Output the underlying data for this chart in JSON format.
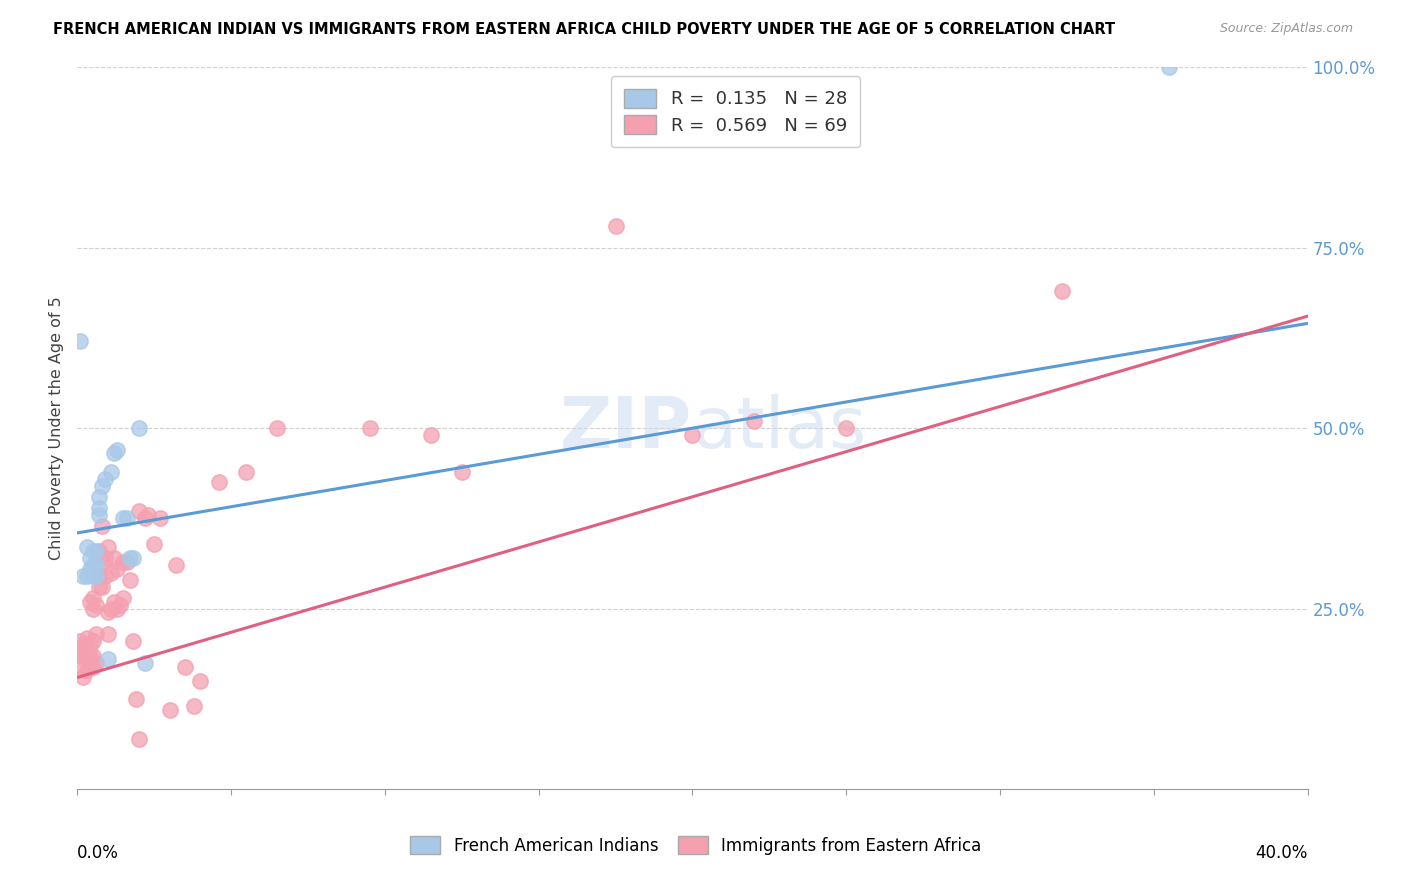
{
  "title": "FRENCH AMERICAN INDIAN VS IMMIGRANTS FROM EASTERN AFRICA CHILD POVERTY UNDER THE AGE OF 5 CORRELATION CHART",
  "source": "Source: ZipAtlas.com",
  "ylabel": "Child Poverty Under the Age of 5",
  "blue_R": 0.135,
  "blue_N": 28,
  "pink_R": 0.569,
  "pink_N": 69,
  "blue_color": "#a8c8e8",
  "pink_color": "#f4a0b0",
  "blue_line_color": "#5b9bd5",
  "pink_line_color": "#e06080",
  "watermark": "ZIPatlas",
  "blue_line_x0": 0.0,
  "blue_line_y0": 0.355,
  "blue_line_x1": 0.4,
  "blue_line_y1": 0.645,
  "pink_line_x0": 0.0,
  "pink_line_y0": 0.155,
  "pink_line_x1": 0.4,
  "pink_line_y1": 0.655,
  "blue_points_x": [
    0.001,
    0.002,
    0.003,
    0.003,
    0.004,
    0.004,
    0.005,
    0.005,
    0.005,
    0.006,
    0.006,
    0.006,
    0.007,
    0.007,
    0.007,
    0.008,
    0.009,
    0.01,
    0.011,
    0.012,
    0.013,
    0.015,
    0.016,
    0.017,
    0.018,
    0.02,
    0.022,
    0.355
  ],
  "blue_points_y": [
    0.62,
    0.295,
    0.295,
    0.335,
    0.305,
    0.32,
    0.295,
    0.31,
    0.33,
    0.295,
    0.31,
    0.33,
    0.38,
    0.39,
    0.405,
    0.42,
    0.43,
    0.18,
    0.44,
    0.465,
    0.47,
    0.375,
    0.375,
    0.32,
    0.32,
    0.5,
    0.175,
    1.0
  ],
  "pink_points_x": [
    0.001,
    0.001,
    0.001,
    0.002,
    0.002,
    0.002,
    0.002,
    0.003,
    0.003,
    0.003,
    0.003,
    0.004,
    0.004,
    0.004,
    0.004,
    0.005,
    0.005,
    0.005,
    0.005,
    0.005,
    0.006,
    0.006,
    0.006,
    0.007,
    0.007,
    0.007,
    0.008,
    0.008,
    0.008,
    0.009,
    0.009,
    0.01,
    0.01,
    0.01,
    0.011,
    0.011,
    0.012,
    0.012,
    0.013,
    0.013,
    0.014,
    0.015,
    0.015,
    0.016,
    0.017,
    0.018,
    0.019,
    0.02,
    0.02,
    0.022,
    0.023,
    0.025,
    0.027,
    0.03,
    0.032,
    0.035,
    0.038,
    0.04,
    0.046,
    0.055,
    0.065,
    0.095,
    0.115,
    0.125,
    0.175,
    0.2,
    0.22,
    0.25,
    0.32
  ],
  "pink_points_y": [
    0.185,
    0.195,
    0.205,
    0.155,
    0.165,
    0.185,
    0.2,
    0.165,
    0.18,
    0.195,
    0.21,
    0.175,
    0.185,
    0.2,
    0.26,
    0.17,
    0.185,
    0.205,
    0.25,
    0.265,
    0.175,
    0.215,
    0.255,
    0.28,
    0.295,
    0.33,
    0.28,
    0.315,
    0.365,
    0.295,
    0.32,
    0.215,
    0.245,
    0.335,
    0.25,
    0.3,
    0.26,
    0.32,
    0.25,
    0.305,
    0.255,
    0.265,
    0.315,
    0.315,
    0.29,
    0.205,
    0.125,
    0.07,
    0.385,
    0.375,
    0.38,
    0.34,
    0.375,
    0.11,
    0.31,
    0.17,
    0.115,
    0.15,
    0.425,
    0.44,
    0.5,
    0.5,
    0.49,
    0.44,
    0.78,
    0.49,
    0.51,
    0.5,
    0.69
  ],
  "xlim": [
    0.0,
    0.4
  ],
  "ylim": [
    0.0,
    1.0
  ],
  "bg_color": "#ffffff",
  "grid_color": "#d0d0d0"
}
